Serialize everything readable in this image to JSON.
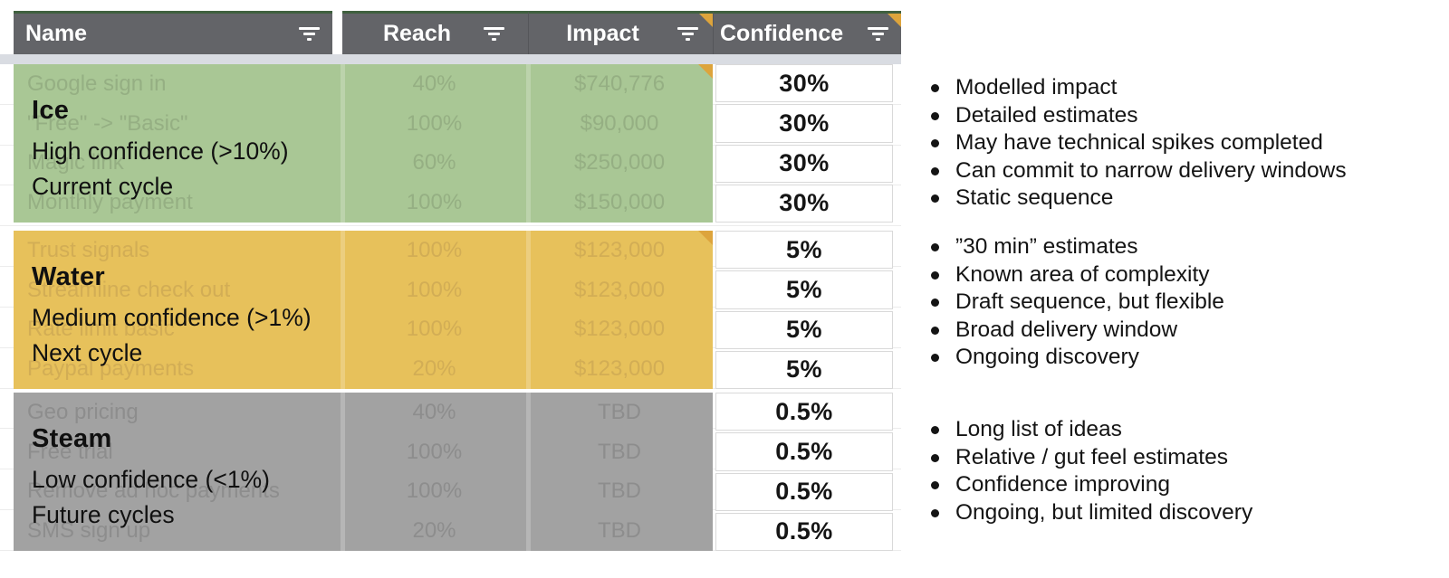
{
  "header": {
    "columns": [
      {
        "label": "Name"
      },
      {
        "label": "Reach"
      },
      {
        "label": "Impact"
      },
      {
        "label": "Confidence"
      }
    ]
  },
  "groups": [
    {
      "title": "Ice",
      "confidence_label": "High confidence (>10%)",
      "cycle_label": "Current cycle",
      "color": "#a9c795",
      "rows": [
        {
          "name": "Google sign in",
          "reach": "40%",
          "impact": "$740,776",
          "confidence": "30%"
        },
        {
          "name": "\"Free\" -> \"Basic\"",
          "reach": "100%",
          "impact": "$90,000",
          "confidence": "30%"
        },
        {
          "name": "Magic link",
          "reach": "60%",
          "impact": "$250,000",
          "confidence": "30%"
        },
        {
          "name": "Monthly payment",
          "reach": "100%",
          "impact": "$150,000",
          "confidence": "30%"
        }
      ]
    },
    {
      "title": "Water",
      "confidence_label": "Medium confidence (>1%)",
      "cycle_label": "Next cycle",
      "color": "#e7c15b",
      "rows": [
        {
          "name": "Trust signals",
          "reach": "100%",
          "impact": "$123,000",
          "confidence": "5%"
        },
        {
          "name": "Streamline check out",
          "reach": "100%",
          "impact": "$123,000",
          "confidence": "5%"
        },
        {
          "name": "Rate limit basic",
          "reach": "100%",
          "impact": "$123,000",
          "confidence": "5%"
        },
        {
          "name": "Paypal payments",
          "reach": "20%",
          "impact": "$123,000",
          "confidence": "5%"
        }
      ]
    },
    {
      "title": "Steam",
      "confidence_label": "Low confidence (<1%)",
      "cycle_label": "Future cycles",
      "color": "#a2a2a2",
      "rows": [
        {
          "name": "Geo pricing",
          "reach": "40%",
          "impact": "TBD",
          "confidence": "0.5%"
        },
        {
          "name": "Free trial",
          "reach": "100%",
          "impact": "TBD",
          "confidence": "0.5%"
        },
        {
          "name": "Remove ad hoc payments",
          "reach": "100%",
          "impact": "TBD",
          "confidence": "0.5%"
        },
        {
          "name": "SMS sign up",
          "reach": "20%",
          "impact": "TBD",
          "confidence": "0.5%"
        }
      ]
    }
  ],
  "notes": [
    {
      "items": [
        "Modelled impact",
        "Detailed estimates",
        "May have technical spikes completed",
        "Can commit to narrow delivery windows",
        "Static sequence"
      ]
    },
    {
      "items": [
        "”30 min” estimates",
        "Known area of complexity",
        "Draft sequence, but flexible",
        "Broad delivery window",
        "Ongoing discovery"
      ]
    },
    {
      "items": [
        "Long list of ideas",
        "Relative / gut feel estimates",
        "Confidence improving",
        "Ongoing, but limited discovery"
      ]
    }
  ],
  "colors": {
    "header_bg": "#636468",
    "header_top_border": "#40603f",
    "ice_green": "#a9c795",
    "water_yellow": "#e7c15b",
    "steam_gray": "#a2a2a2",
    "note_corner": "#dda43c"
  }
}
